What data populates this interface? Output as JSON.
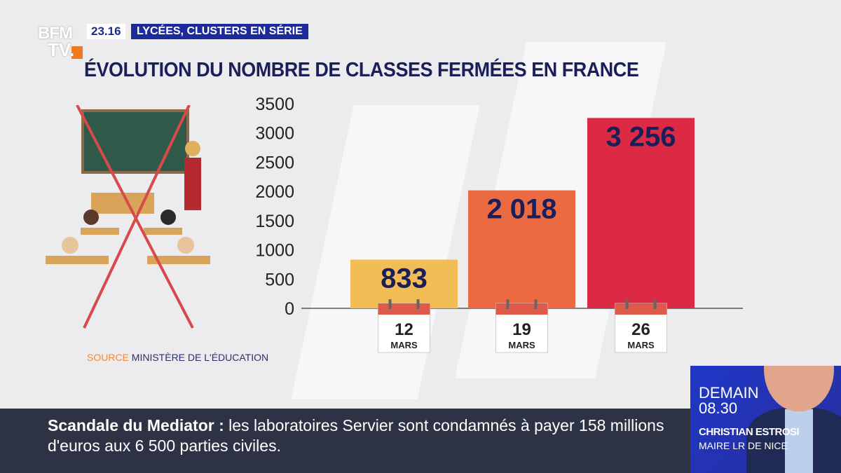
{
  "channel": {
    "logo_top": "BFM",
    "logo_bottom": "TV.",
    "time": "23.16",
    "topic": "LYCÉES, CLUSTERS EN SÉRIE"
  },
  "chart_data": {
    "type": "bar",
    "title": "ÉVOLUTION DU NOMBRE DE CLASSES FERMÉES EN FRANCE",
    "categories": [
      {
        "day": "12",
        "month": "MARS"
      },
      {
        "day": "19",
        "month": "MARS"
      },
      {
        "day": "26",
        "month": "MARS"
      }
    ],
    "values": [
      833,
      2018,
      3256
    ],
    "value_labels": [
      "833",
      "2 018",
      "3 256"
    ],
    "colors": [
      "#f3bd55",
      "#ec6a42",
      "#dc2a44"
    ],
    "ylim": [
      0,
      3500
    ],
    "yticks": [
      "0",
      "500",
      "1000",
      "1500",
      "2000",
      "2500",
      "3000",
      "3500"
    ],
    "xlabel": "",
    "ylabel": ""
  },
  "source": {
    "label": "SOURCE",
    "value": "MINISTÈRE DE L'ÉDUCATION"
  },
  "ticker": {
    "headline": "Scandale du Mediator :",
    "text": " les laboratoires Servier sont condamnés à payer 158 millions d'euros aux 6 500 parties civiles."
  },
  "promo": {
    "day": "DEMAIN",
    "time": "08.30",
    "name": "CHRISTIAN ESTROSI",
    "role": "MAIRE LR DE NICE"
  }
}
